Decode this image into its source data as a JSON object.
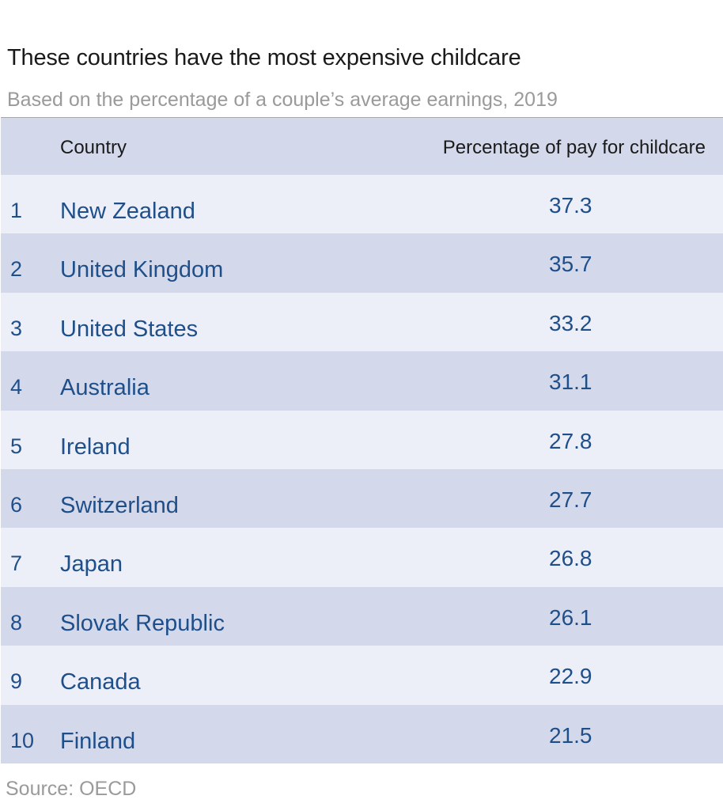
{
  "chart_data": {
    "type": "table",
    "title": "These countries have the most expensive childcare",
    "subtitle": "Based on the percentage of a couple’s average earnings, 2019",
    "columns": [
      "",
      "Country",
      "Percentage of pay for childcare"
    ],
    "rows": [
      {
        "rank": "1",
        "country": "New Zealand",
        "value": "37.3"
      },
      {
        "rank": "2",
        "country": "United Kingdom",
        "value": "35.7"
      },
      {
        "rank": "3",
        "country": "United States",
        "value": "33.2"
      },
      {
        "rank": "4",
        "country": "Australia",
        "value": "31.1"
      },
      {
        "rank": "5",
        "country": "Ireland",
        "value": "27.8"
      },
      {
        "rank": "6",
        "country": "Switzerland",
        "value": "27.7"
      },
      {
        "rank": "7",
        "country": "Japan",
        "value": "26.8"
      },
      {
        "rank": "8",
        "country": "Slovak Republic",
        "value": "26.1"
      },
      {
        "rank": "9",
        "country": "Canada",
        "value": "22.9"
      },
      {
        "rank": "10",
        "country": "Finland",
        "value": "21.5"
      }
    ],
    "source": "Source:  OECD"
  },
  "colors": {
    "header_bg": "#d3d9eb",
    "row_light": "#eceff8",
    "row_dark": "#d3d9eb",
    "text_blue": "#1f4f8a",
    "subtitle_gray": "#9a9a9a"
  }
}
